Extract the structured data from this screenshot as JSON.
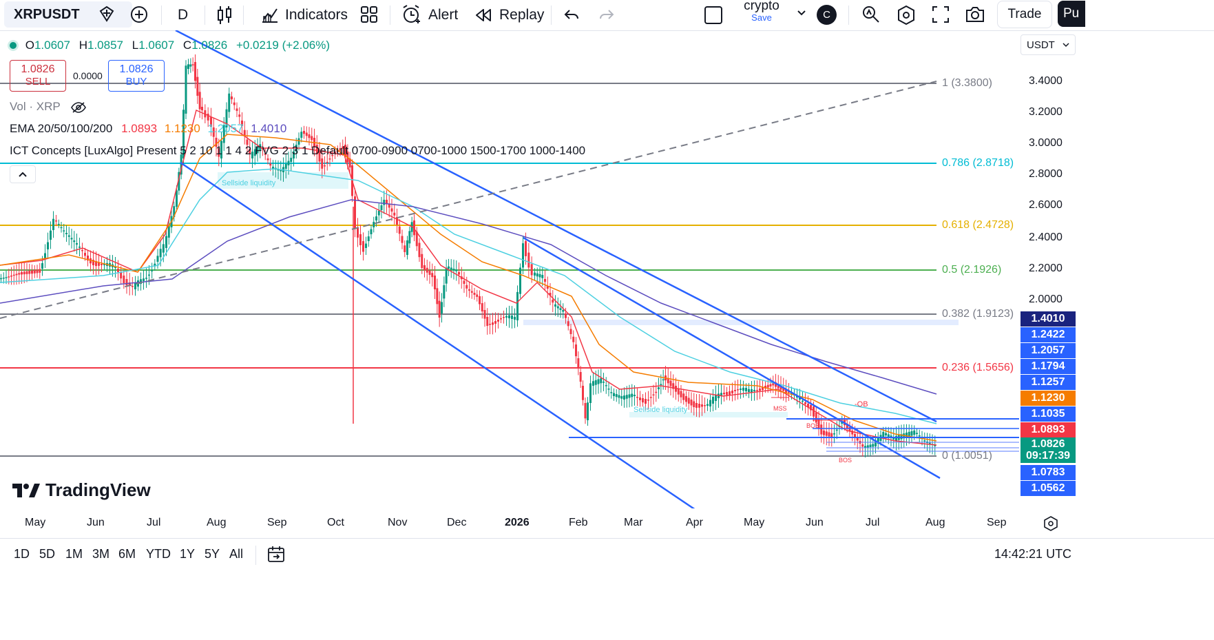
{
  "toolbar": {
    "symbol": "XRPUSDT",
    "interval": "D",
    "indicators_label": "Indicators",
    "alert_label": "Alert",
    "replay_label": "Replay",
    "layout_name": "crypto",
    "layout_save": "Save",
    "avatar_letter": "C",
    "trade_label": "Trade",
    "publish_label": "Pu"
  },
  "legend": {
    "ohlc_o_label": "O",
    "ohlc_o": "1.0607",
    "ohlc_h_label": "H",
    "ohlc_h": "1.0857",
    "ohlc_l_label": "L",
    "ohlc_l": "1.0607",
    "ohlc_c_label": "C",
    "ohlc_c": "1.0826",
    "change": "+0.0219 (+2.06%)",
    "sell_price": "1.0826",
    "sell_label": "SELL",
    "spread": "0.0000",
    "buy_price": "1.0826",
    "buy_label": "BUY",
    "volume": "Vol · XRP",
    "ema_title": "EMA 20/50/100/200",
    "ema20": "1.0893",
    "ema50": "1.1230",
    "ema100": "1.2057",
    "ema200": "1.4010",
    "ict": "ICT Concepts [LuxAlgo] Present 5 2 10 1 1 4 2 FVG 2 3 1 Default 0700-0900 0700-1000 1500-1700 1000-1400"
  },
  "currency": "USDT",
  "price_axis": [
    "3.4000",
    "3.2000",
    "3.0000",
    "2.8000",
    "2.6000",
    "2.4000",
    "2.2000",
    "2.0000"
  ],
  "price_tags": [
    {
      "value": "1.4010",
      "color": "#1a237e"
    },
    {
      "value": "1.2422",
      "color": "#2962ff"
    },
    {
      "value": "1.2057",
      "color": "#2962ff"
    },
    {
      "value": "1.1794",
      "color": "#2962ff"
    },
    {
      "value": "1.1257",
      "color": "#2962ff"
    },
    {
      "value": "1.1230",
      "color": "#f57c00"
    },
    {
      "value": "1.1035",
      "color": "#2962ff"
    },
    {
      "value": "1.0893",
      "color": "#f23645"
    },
    {
      "value": "1.0826",
      "color": "#089981"
    },
    {
      "value": "09:17:39",
      "color": "#089981"
    },
    {
      "value": "1.0783",
      "color": "#2962ff"
    },
    {
      "value": "1.0562",
      "color": "#2962ff"
    }
  ],
  "fib_levels": [
    {
      "label": "1 (3.3800)",
      "color": "#787b86"
    },
    {
      "label": "0.786 (2.8718)",
      "color": "#00bcd4"
    },
    {
      "label": "0.618 (2.4728)",
      "color": "#e5b000"
    },
    {
      "label": "0.5 (2.1926)",
      "color": "#4caf50"
    },
    {
      "label": "0.382 (1.9123)",
      "color": "#787b86"
    },
    {
      "label": "0.236 (1.5656)",
      "color": "#f23645"
    },
    {
      "label": "0 (1.0051)",
      "color": "#787b86"
    }
  ],
  "annotations": {
    "sellside1": "Sellside liquidity",
    "sellside2": "Sellside liquidity",
    "ob": "-OB",
    "mss": "MSS",
    "bos1": "BOS",
    "bos2": "BOS"
  },
  "months": [
    "May",
    "Jun",
    "Jul",
    "Aug",
    "Sep",
    "Oct",
    "Nov",
    "Dec",
    "2026",
    "Feb",
    "Mar",
    "Apr",
    "May",
    "Jun",
    "Jul",
    "Aug",
    "Sep"
  ],
  "logo": "TradingView",
  "ranges": [
    "1D",
    "5D",
    "1M",
    "3M",
    "6M",
    "YTD",
    "1Y",
    "5Y",
    "All"
  ],
  "clock": "14:42:21 UTC",
  "colors": {
    "up": "#089981",
    "down": "#f23645",
    "channel": "#2962ff",
    "ema20": "#f23645",
    "ema50": "#f57c00",
    "ema100": "#4dd0e1",
    "ema200": "#5c4dbf"
  }
}
